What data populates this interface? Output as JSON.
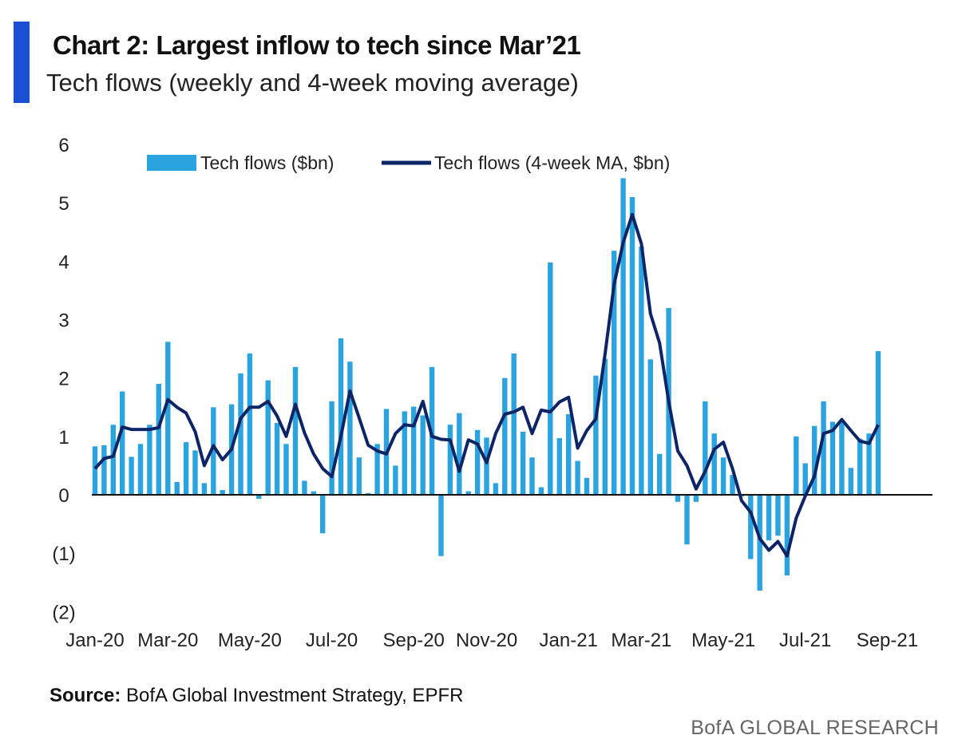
{
  "header": {
    "title": "Chart 2: Largest inflow to tech since Mar’21",
    "subtitle": "Tech flows (weekly and 4-week moving average)"
  },
  "footer": {
    "source_label": "Source:",
    "source_text": " BofA Global Investment Strategy, EPFR",
    "brand": "BofA GLOBAL RESEARCH"
  },
  "colors": {
    "accent": "#1a4fd6",
    "bars": "#2aa3df",
    "line": "#0d2566",
    "negative_tick": "#d0312d",
    "axis": "#111111"
  },
  "chart_data": {
    "type": "bar",
    "title": "Chart 2: Largest inflow to tech since Mar’21",
    "subtitle": "Tech flows (weekly and 4-week moving average)",
    "ylim": [
      -2,
      6
    ],
    "yticks": [
      6,
      5,
      4,
      3,
      2,
      1,
      0,
      -1,
      -2
    ],
    "ytick_labels": [
      "6",
      "5",
      "4",
      "3",
      "2",
      "1",
      "0",
      "(1)",
      "(2)"
    ],
    "xtick_labels": [
      "Jan-20",
      "Mar-20",
      "May-20",
      "Jul-20",
      "Sep-20",
      "Nov-20",
      "Jan-21",
      "Mar-21",
      "May-21",
      "Jul-21",
      "Sep-21"
    ],
    "xtick_week_index": [
      0,
      8,
      17,
      26,
      35,
      43,
      52,
      60,
      69,
      78,
      87
    ],
    "legend": [
      "Tech flows ($bn)",
      "Tech flows (4-week MA, $bn)"
    ],
    "legend_position": "top-center",
    "grid": false,
    "series": [
      {
        "name": "Tech flows ($bn)",
        "kind": "bar",
        "values": [
          0.83,
          0.85,
          1.2,
          1.77,
          0.65,
          0.87,
          1.2,
          1.9,
          2.62,
          0.22,
          0.9,
          0.76,
          0.2,
          1.5,
          0.08,
          1.55,
          2.08,
          2.42,
          -0.07,
          1.96,
          1.23,
          0.87,
          2.19,
          0.24,
          0.06,
          -0.66,
          1.6,
          2.68,
          2.28,
          0.64,
          0.03,
          0.87,
          1.47,
          0.5,
          1.43,
          1.51,
          1.36,
          2.19,
          -1.05,
          1.2,
          1.4,
          0.06,
          1.11,
          0.98,
          0.2,
          2.0,
          2.42,
          1.08,
          0.64,
          0.13,
          3.98,
          0.97,
          1.38,
          0.58,
          0.29,
          2.04,
          2.33,
          4.18,
          5.42,
          5.1,
          4.25,
          2.32,
          0.7,
          3.2,
          -0.12,
          -0.85,
          -0.12,
          1.6,
          1.05,
          0.64,
          0.34,
          -0.03,
          -1.1,
          -1.64,
          -0.78,
          -0.7,
          -1.38,
          1.0,
          0.54,
          1.18,
          1.6,
          1.25,
          1.26,
          0.46,
          0.96,
          1.05,
          2.46
        ]
      },
      {
        "name": "Tech flows (4-week MA, $bn)",
        "kind": "line",
        "values": [
          0.45,
          0.62,
          0.66,
          1.16,
          1.12,
          1.12,
          1.12,
          1.15,
          1.63,
          1.5,
          1.4,
          1.08,
          0.5,
          0.84,
          0.6,
          0.78,
          1.31,
          1.5,
          1.5,
          1.6,
          1.35,
          1.0,
          1.55,
          1.06,
          0.7,
          0.45,
          0.31,
          1.0,
          1.78,
          1.32,
          0.85,
          0.75,
          0.7,
          1.05,
          1.2,
          1.18,
          1.6,
          1.0,
          0.95,
          0.94,
          0.4,
          0.94,
          0.87,
          0.55,
          1.05,
          1.38,
          1.42,
          1.5,
          1.05,
          1.45,
          1.42,
          1.59,
          1.67,
          0.8,
          1.1,
          1.3,
          2.4,
          3.6,
          4.32,
          4.8,
          4.3,
          3.1,
          2.6,
          1.6,
          0.75,
          0.5,
          0.1,
          0.4,
          0.78,
          0.9,
          0.45,
          -0.1,
          -0.3,
          -0.75,
          -0.95,
          -0.8,
          -1.05,
          -0.4,
          -0.02,
          0.32,
          1.05,
          1.1,
          1.29,
          1.1,
          0.92,
          0.88,
          1.2
        ]
      }
    ]
  }
}
